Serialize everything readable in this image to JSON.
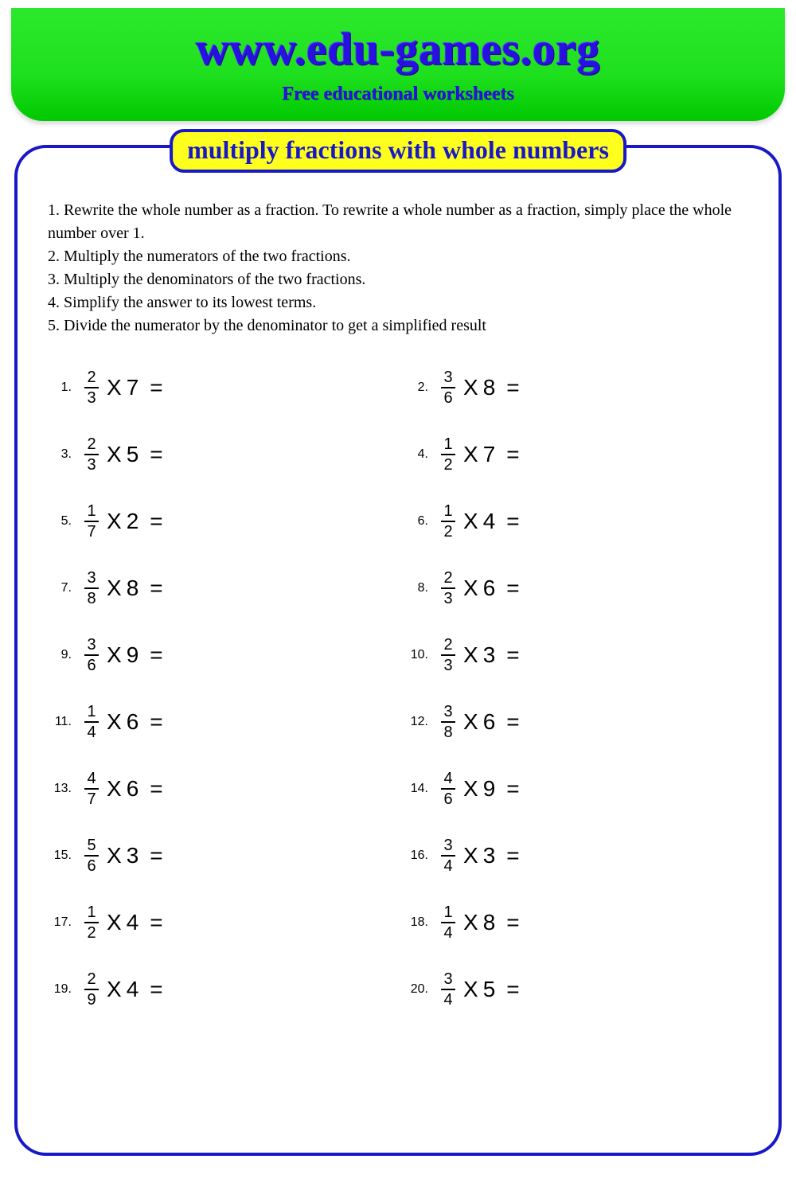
{
  "header": {
    "url": "www.edu-games.org",
    "subtitle": "Free educational worksheets",
    "bg_gradient_top": "#2ce82c",
    "bg_gradient_bottom": "#00c800",
    "text_color": "#2810e0"
  },
  "worksheet": {
    "title": "multiply fractions with whole numbers",
    "title_bg": "#ffff1e",
    "border_color": "#1818c8",
    "instructions": [
      "1. Rewrite the whole number as a fraction. To rewrite a whole number as a fraction, simply place the whole number over 1.",
      "2. Multiply the numerators of the two fractions.",
      "3. Multiply the denominators of the two fractions.",
      "4. Simplify the answer to its lowest terms.",
      "5. Divide the numerator by the denominator to get a simplified result"
    ],
    "operator": "X",
    "equals": "=",
    "problems": [
      {
        "n": "1.",
        "num": "2",
        "den": "3",
        "whole": "7"
      },
      {
        "n": "2.",
        "num": "3",
        "den": "6",
        "whole": "8"
      },
      {
        "n": "3.",
        "num": "2",
        "den": "3",
        "whole": "5"
      },
      {
        "n": "4.",
        "num": "1",
        "den": "2",
        "whole": "7"
      },
      {
        "n": "5.",
        "num": "1",
        "den": "7",
        "whole": "2"
      },
      {
        "n": "6.",
        "num": "1",
        "den": "2",
        "whole": "4"
      },
      {
        "n": "7.",
        "num": "3",
        "den": "8",
        "whole": "8"
      },
      {
        "n": "8.",
        "num": "2",
        "den": "3",
        "whole": "6"
      },
      {
        "n": "9.",
        "num": "3",
        "den": "6",
        "whole": "9"
      },
      {
        "n": "10.",
        "num": "2",
        "den": "3",
        "whole": "3"
      },
      {
        "n": "11.",
        "num": "1",
        "den": "4",
        "whole": "6"
      },
      {
        "n": "12.",
        "num": "3",
        "den": "8",
        "whole": "6"
      },
      {
        "n": "13.",
        "num": "4",
        "den": "7",
        "whole": "6"
      },
      {
        "n": "14.",
        "num": "4",
        "den": "6",
        "whole": "9"
      },
      {
        "n": "15.",
        "num": "5",
        "den": "6",
        "whole": "3"
      },
      {
        "n": "16.",
        "num": "3",
        "den": "4",
        "whole": "3"
      },
      {
        "n": "17.",
        "num": "1",
        "den": "2",
        "whole": "4"
      },
      {
        "n": "18.",
        "num": "1",
        "den": "4",
        "whole": "8"
      },
      {
        "n": "19.",
        "num": "2",
        "den": "9",
        "whole": "4"
      },
      {
        "n": "20.",
        "num": "3",
        "den": "4",
        "whole": "5"
      }
    ]
  }
}
